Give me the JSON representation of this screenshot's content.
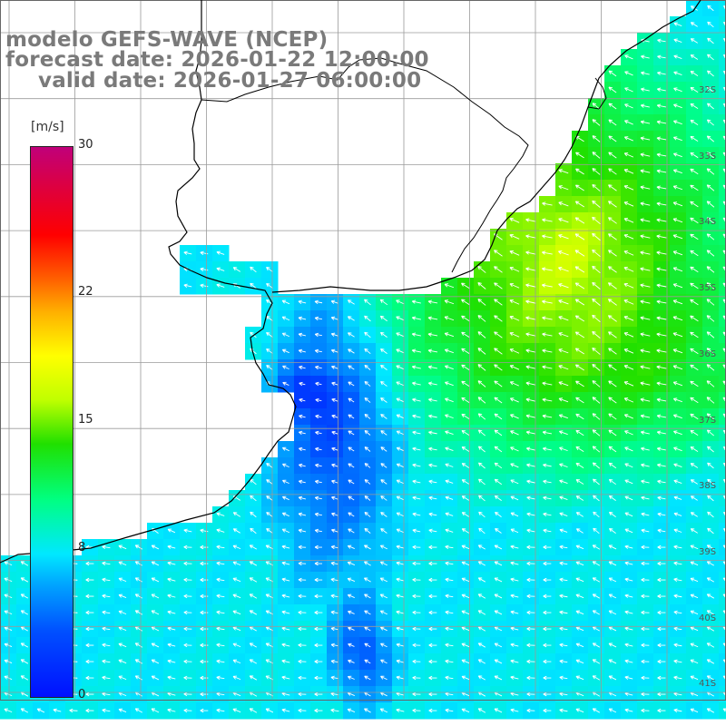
{
  "header": {
    "line1": "modelo GEFS-WAVE (NCEP)",
    "line2": "forecast date: 2026-01-22 12:00:00",
    "line3": "valid date: 2026-01-27 06:00:00"
  },
  "colorbar": {
    "unit": "[m/s]",
    "min": 0,
    "max": 30,
    "ticks": [
      {
        "value": 30,
        "label": "30"
      },
      {
        "value": 22,
        "label": "22"
      },
      {
        "value": 15,
        "label": "15"
      },
      {
        "value": 8,
        "label": "8"
      },
      {
        "value": 0,
        "label": "0"
      }
    ]
  },
  "map": {
    "lat_labels": [
      "32S",
      "33S",
      "34S",
      "35S",
      "36S",
      "37S",
      "38S",
      "39S",
      "40S",
      "41S"
    ],
    "colors": {
      "land": "#ffffff",
      "coast": "#000000",
      "grid": "#9a9a9a",
      "arrow": "#ffffff"
    }
  }
}
